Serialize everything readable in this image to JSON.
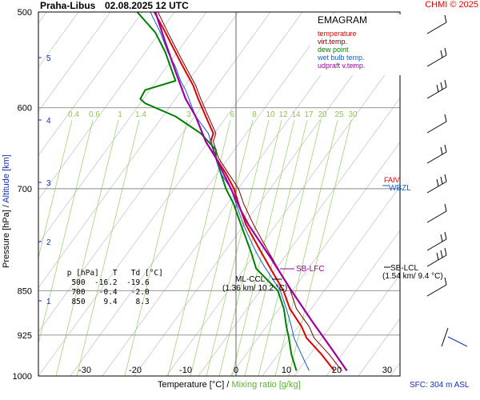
{
  "header": {
    "station": "Praha-Libus",
    "datetime": "02.08.2025 12 UTC",
    "copyright": "CHMI © 2025"
  },
  "legend": {
    "title": "EMAGRAM",
    "items": [
      {
        "label": "temperature",
        "color": "#e00000"
      },
      {
        "label": "virt.temp.",
        "color": "#800000"
      },
      {
        "label": "dew point",
        "color": "#008000"
      },
      {
        "label": "wet bulb temp.",
        "color": "#1060d0"
      },
      {
        "label": "udpraft v.temp.",
        "color": "#a000a0"
      }
    ]
  },
  "axes": {
    "ylabel_pressure": "Pressure [hPa]",
    "ylabel_sep": "/",
    "ylabel_altitude": "Altitude [km]",
    "xlabel_temp": "Temperature [°C]",
    "xlabel_sep": "/",
    "xlabel_mixing": "Mixing ratio [g/kg]",
    "pressure_ticks": [
      "500",
      "600",
      "700",
      "850",
      "925",
      "1000"
    ],
    "altitude_ticks": [
      "5",
      "4",
      "3",
      "2",
      "1"
    ],
    "temp_ticks": [
      "-30",
      "-20",
      "-10",
      "0",
      "10",
      "20",
      "30"
    ],
    "mixing_ticks": [
      "0.4",
      "0.6",
      "1",
      "1.4",
      "3",
      "6",
      "8",
      "10",
      "12",
      "14",
      "17",
      "20",
      "25",
      "30"
    ]
  },
  "annotations": {
    "fa": "FAIV",
    "wbzl": "WBZL",
    "sb_lfc": "SB-LFC",
    "sb_lcl": "SB-LCL",
    "sb_lcl_val": "(1.54 km/ 9.4 °C)",
    "ml_ccl": "ML-CCL",
    "ml_ccl_val": "(1.36 km/ 10.2 °C)",
    "sfc": "SFC: 304 m ASL"
  },
  "table": {
    "header": " p [hPa]   T   Td [°C]",
    "rows": [
      "  500  -16.2  -19.6",
      "  700   -0.4   -2.0",
      "  850    9.4    8.3"
    ]
  },
  "chart_data": {
    "type": "line",
    "title": "EMAGRAM",
    "xlabel": "Temperature [°C] / Mixing ratio [g/kg]",
    "ylabel": "Pressure [hPa] / Altitude [km]",
    "xlim": [
      -40,
      31
    ],
    "ylim": [
      1000,
      500
    ],
    "y_scale": "log",
    "series": [
      {
        "name": "temperature",
        "color": "#e00000",
        "points": [
          [
            19.5,
            990
          ],
          [
            17,
            960
          ],
          [
            14,
            930
          ],
          [
            13,
            910
          ],
          [
            10.7,
            880
          ],
          [
            9.4,
            850
          ],
          [
            6.5,
            810
          ],
          [
            5,
            790
          ],
          [
            2,
            750
          ],
          [
            0.5,
            720
          ],
          [
            -0.4,
            700
          ],
          [
            -2,
            680
          ],
          [
            -4,
            660
          ],
          [
            -4.5,
            650
          ],
          [
            -5,
            640
          ],
          [
            -4.5,
            630
          ],
          [
            -6,
            610
          ],
          [
            -7.5,
            590
          ],
          [
            -8.5,
            575
          ],
          [
            -10,
            560
          ],
          [
            -11,
            550
          ],
          [
            -12.5,
            535
          ],
          [
            -14,
            520
          ],
          [
            -16.2,
            500
          ]
        ]
      },
      {
        "name": "virt.temp.",
        "color": "#800000",
        "points": [
          [
            21,
            990
          ],
          [
            18.5,
            960
          ],
          [
            15.5,
            930
          ],
          [
            14.5,
            910
          ],
          [
            12,
            880
          ],
          [
            10.8,
            850
          ],
          [
            8,
            810
          ],
          [
            6.5,
            790
          ],
          [
            3.5,
            750
          ],
          [
            1.5,
            720
          ],
          [
            0.5,
            700
          ],
          [
            -1.5,
            680
          ],
          [
            -3.5,
            660
          ],
          [
            -4,
            650
          ],
          [
            -4.5,
            640
          ],
          [
            -4,
            630
          ],
          [
            -5.5,
            610
          ],
          [
            -7,
            590
          ],
          [
            -8,
            575
          ],
          [
            -9.5,
            560
          ],
          [
            -10.5,
            550
          ],
          [
            -12,
            535
          ],
          [
            -13.5,
            520
          ],
          [
            -15.5,
            500
          ]
        ]
      },
      {
        "name": "dew point",
        "color": "#008000",
        "points": [
          [
            12,
            990
          ],
          [
            11,
            960
          ],
          [
            10.5,
            930
          ],
          [
            10,
            910
          ],
          [
            9.5,
            880
          ],
          [
            8.3,
            850
          ],
          [
            4,
            815
          ],
          [
            3,
            790
          ],
          [
            1,
            750
          ],
          [
            -0.5,
            720
          ],
          [
            -2,
            700
          ],
          [
            -3,
            680
          ],
          [
            -4,
            660
          ],
          [
            -4,
            650
          ],
          [
            -7,
            630
          ],
          [
            -12,
            610
          ],
          [
            -18,
            595
          ],
          [
            -19,
            590
          ],
          [
            -18,
            580
          ],
          [
            -12,
            570
          ],
          [
            -13,
            555
          ],
          [
            -14,
            540
          ],
          [
            -16,
            520
          ],
          [
            -19.6,
            500
          ]
        ]
      },
      {
        "name": "wet bulb temp.",
        "color": "#1060d0",
        "points": [
          [
            14.5,
            990
          ],
          [
            13,
            960
          ],
          [
            11.5,
            930
          ],
          [
            11,
            910
          ],
          [
            10,
            880
          ],
          [
            8.8,
            850
          ],
          [
            5.5,
            810
          ],
          [
            4,
            790
          ],
          [
            1.5,
            750
          ],
          [
            0,
            720
          ],
          [
            -1,
            700
          ],
          [
            -3,
            680
          ],
          [
            -4,
            660
          ],
          [
            -4.5,
            650
          ],
          [
            -5.5,
            630
          ],
          [
            -8,
            610
          ],
          [
            -9,
            595
          ],
          [
            -10,
            580
          ],
          [
            -11,
            570
          ],
          [
            -12,
            555
          ],
          [
            -13.5,
            540
          ],
          [
            -15,
            520
          ],
          [
            -17,
            500
          ]
        ]
      },
      {
        "name": "udpraft v.temp.",
        "color": "#a000a0",
        "points": [
          [
            22,
            990
          ],
          [
            19,
            950
          ],
          [
            15,
            900
          ],
          [
            11,
            850
          ],
          [
            7,
            800
          ],
          [
            2.5,
            750
          ],
          [
            1,
            730
          ],
          [
            -1,
            700
          ],
          [
            -4,
            660
          ],
          [
            -6,
            640
          ],
          [
            -8,
            610
          ],
          [
            -10,
            590
          ],
          [
            -12,
            560
          ],
          [
            -14,
            530
          ],
          [
            -16,
            500
          ]
        ]
      }
    ]
  }
}
